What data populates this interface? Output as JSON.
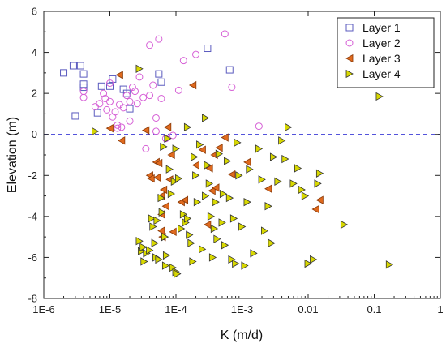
{
  "chart_data": {
    "type": "scatter",
    "xlabel": "K (m/d)",
    "ylabel": "Elevation (m)",
    "xscale": "log",
    "xlim": [
      1e-06,
      1
    ],
    "ylim": [
      -8,
      6
    ],
    "x_tick_values": [
      1e-06,
      1e-05,
      0.0001,
      0.001,
      0.01,
      0.1,
      1
    ],
    "x_tick_labels": [
      "1E-6",
      "1E-5",
      "1E-4",
      "1E-3",
      "0.01",
      "0.1",
      "1"
    ],
    "y_tick_values": [
      -8,
      -6,
      -4,
      -2,
      0,
      2,
      4,
      6
    ],
    "y_tick_labels": [
      "-8",
      "-6",
      "-4",
      "-2",
      "0",
      "2",
      "4",
      "6"
    ],
    "reference_line": {
      "y": 0,
      "style": "dashed",
      "color": "#3b3bd6"
    },
    "legend_position": "top-right",
    "series": [
      {
        "name": "Layer 1",
        "marker": "square-open",
        "color": "#5b5bbf",
        "points": [
          [
            2e-06,
            3.0
          ],
          [
            2.8e-06,
            3.35
          ],
          [
            3.6e-06,
            3.35
          ],
          [
            4e-06,
            2.95
          ],
          [
            4e-06,
            2.45
          ],
          [
            4e-06,
            2.3
          ],
          [
            3e-06,
            0.9
          ],
          [
            6.5e-06,
            1.05
          ],
          [
            7.5e-06,
            2.35
          ],
          [
            1e-05,
            2.35
          ],
          [
            1.1e-05,
            2.7
          ],
          [
            1.6e-05,
            2.2
          ],
          [
            1.8e-05,
            2.0
          ],
          [
            2e-05,
            1.25
          ],
          [
            5.5e-05,
            2.95
          ],
          [
            6e-05,
            2.55
          ],
          [
            0.0003,
            4.2
          ],
          [
            0.00065,
            3.15
          ]
        ]
      },
      {
        "name": "Layer 2",
        "marker": "circle-open",
        "color": "#d660d6",
        "points": [
          [
            4e-06,
            2.1
          ],
          [
            4e-06,
            1.8
          ],
          [
            6e-06,
            1.35
          ],
          [
            7e-06,
            1.5
          ],
          [
            8e-06,
            2.0
          ],
          [
            8.5e-06,
            1.75
          ],
          [
            9e-06,
            1.2
          ],
          [
            1e-05,
            1.6
          ],
          [
            1e-05,
            2.5
          ],
          [
            1.1e-05,
            0.85
          ],
          [
            1.2e-05,
            1.1
          ],
          [
            1.3e-05,
            0.45
          ],
          [
            1.3e-05,
            0.3
          ],
          [
            1.4e-05,
            1.45
          ],
          [
            1.5e-05,
            0.35
          ],
          [
            1.6e-05,
            1.3
          ],
          [
            1.8e-05,
            1.9
          ],
          [
            2e-05,
            1.6
          ],
          [
            2e-05,
            0.65
          ],
          [
            2.2e-05,
            2.3
          ],
          [
            2.4e-05,
            2.1
          ],
          [
            2.6e-05,
            1.5
          ],
          [
            2.8e-05,
            2.8
          ],
          [
            3.2e-05,
            1.8
          ],
          [
            3.5e-05,
            -0.7
          ],
          [
            4e-05,
            4.35
          ],
          [
            4e-05,
            1.9
          ],
          [
            4.5e-05,
            2.4
          ],
          [
            5e-05,
            0.8
          ],
          [
            5e-05,
            0.15
          ],
          [
            5.5e-05,
            4.65
          ],
          [
            6e-05,
            1.75
          ],
          [
            7e-05,
            -0.2
          ],
          [
            9e-05,
            -0.05
          ],
          [
            0.00011,
            2.15
          ],
          [
            0.00013,
            3.6
          ],
          [
            0.0002,
            3.9
          ],
          [
            0.00055,
            4.9
          ],
          [
            0.0007,
            2.3
          ],
          [
            0.0018,
            0.4
          ]
        ]
      },
      {
        "name": "Layer 3",
        "marker": "triangle-left-filled",
        "color": "#e06a1e",
        "points": [
          [
            1e-05,
            0.3
          ],
          [
            1.4e-05,
            2.9
          ],
          [
            1.5e-05,
            -0.3
          ],
          [
            3.5e-05,
            0.2
          ],
          [
            4e-05,
            -2.0
          ],
          [
            4.2e-05,
            -2.15
          ],
          [
            5e-05,
            -1.35
          ],
          [
            5.2e-05,
            -2.1
          ],
          [
            5.5e-05,
            -1.4
          ],
          [
            6e-05,
            -3.9
          ],
          [
            6e-05,
            -3.0
          ],
          [
            6e-05,
            -4.7
          ],
          [
            6.2e-05,
            -5.0
          ],
          [
            6.5e-05,
            -2.7
          ],
          [
            7e-05,
            -3.5
          ],
          [
            7.5e-05,
            0.35
          ],
          [
            8e-05,
            -2.2
          ],
          [
            8.5e-05,
            -1.0
          ],
          [
            9e-05,
            -4.75
          ],
          [
            0.00012,
            -3.3
          ],
          [
            0.000135,
            -3.2
          ],
          [
            0.00018,
            2.4
          ],
          [
            0.0002,
            -1.5
          ],
          [
            0.00025,
            -0.75
          ],
          [
            0.0003,
            -4.4
          ],
          [
            0.00032,
            -1.65
          ],
          [
            0.00035,
            -2.75
          ],
          [
            0.00038,
            -1.0
          ],
          [
            0.0004,
            -2.6
          ],
          [
            0.00045,
            -0.65
          ],
          [
            0.00055,
            -0.15
          ],
          [
            0.0007,
            -1.95
          ],
          [
            0.0012,
            -1.35
          ],
          [
            0.0025,
            -2.65
          ],
          [
            0.013,
            -3.65
          ],
          [
            0.015,
            -3.2
          ]
        ]
      },
      {
        "name": "Layer 4",
        "marker": "triangle-right-filled",
        "color": "#d8d800",
        "points": [
          [
            6e-06,
            0.15
          ],
          [
            2.8e-05,
            3.2
          ],
          [
            2.8e-05,
            -5.2
          ],
          [
            3e-05,
            -5.7
          ],
          [
            3.2e-05,
            -5.5
          ],
          [
            3.3e-05,
            -6.2
          ],
          [
            3.6e-05,
            -5.8
          ],
          [
            4e-05,
            -5.65
          ],
          [
            4.3e-05,
            -4.1
          ],
          [
            4.5e-05,
            -4.5
          ],
          [
            4.8e-05,
            -5.3
          ],
          [
            5e-05,
            -6.0
          ],
          [
            5.2e-05,
            -4.2
          ],
          [
            5.5e-05,
            -6.1
          ],
          [
            6e-05,
            -3.1
          ],
          [
            6.2e-05,
            -3.8
          ],
          [
            6.5e-05,
            -0.6
          ],
          [
            6.8e-05,
            -5.0
          ],
          [
            7e-05,
            -6.4
          ],
          [
            7.2e-05,
            -5.9
          ],
          [
            7.5e-05,
            -0.2
          ],
          [
            8e-05,
            -1.7
          ],
          [
            8.5e-05,
            -2.9
          ],
          [
            9e-05,
            -6.5
          ],
          [
            9.5e-05,
            -2.3
          ],
          [
            0.0001,
            -6.7
          ],
          [
            0.0001,
            -0.7
          ],
          [
            0.000105,
            -6.8
          ],
          [
            0.00011,
            -2.15
          ],
          [
            0.00012,
            -4.6
          ],
          [
            0.00013,
            -3.9
          ],
          [
            0.00014,
            -4.3
          ],
          [
            0.00015,
            -4.1
          ],
          [
            0.00015,
            0.35
          ],
          [
            0.00016,
            -4.9
          ],
          [
            0.00017,
            -5.3
          ],
          [
            0.00018,
            -6.2
          ],
          [
            0.00019,
            -1.1
          ],
          [
            0.0002,
            -2.0
          ],
          [
            0.00021,
            -3.3
          ],
          [
            0.00023,
            -0.5
          ],
          [
            0.00025,
            -5.6
          ],
          [
            0.00028,
            -3.0
          ],
          [
            0.00028,
            0.8
          ],
          [
            0.0003,
            -1.5
          ],
          [
            0.00032,
            -2.4
          ],
          [
            0.00034,
            -4.0
          ],
          [
            0.00036,
            -6.0
          ],
          [
            0.00038,
            -4.6
          ],
          [
            0.0004,
            -3.3
          ],
          [
            0.00042,
            -5.1
          ],
          [
            0.00045,
            -0.95
          ],
          [
            0.0005,
            -4.3
          ],
          [
            0.00052,
            -2.9
          ],
          [
            0.00055,
            -5.4
          ],
          [
            0.0006,
            -1.3
          ],
          [
            0.00065,
            -3.1
          ],
          [
            0.0007,
            -6.1
          ],
          [
            0.00075,
            -4.1
          ],
          [
            0.0008,
            -6.3
          ],
          [
            0.00085,
            -0.4
          ],
          [
            0.0009,
            -2.0
          ],
          [
            0.001,
            -4.5
          ],
          [
            0.0011,
            -6.4
          ],
          [
            0.0012,
            -3.3
          ],
          [
            0.0013,
            -1.7
          ],
          [
            0.0015,
            -5.8
          ],
          [
            0.0018,
            -0.7
          ],
          [
            0.002,
            -2.2
          ],
          [
            0.0022,
            -4.7
          ],
          [
            0.0025,
            -3.5
          ],
          [
            0.0028,
            -5.3
          ],
          [
            0.003,
            -1.1
          ],
          [
            0.0035,
            -2.3
          ],
          [
            0.004,
            -0.3
          ],
          [
            0.0045,
            -1.2
          ],
          [
            0.005,
            0.35
          ],
          [
            0.006,
            -2.4
          ],
          [
            0.007,
            -1.65
          ],
          [
            0.008,
            -2.7
          ],
          [
            0.009,
            -3.0
          ],
          [
            0.01,
            -6.3
          ],
          [
            0.012,
            -6.1
          ],
          [
            0.014,
            -2.4
          ],
          [
            0.015,
            -1.9
          ],
          [
            0.035,
            -4.4
          ],
          [
            0.12,
            1.85
          ],
          [
            0.17,
            -6.35
          ]
        ]
      }
    ]
  }
}
